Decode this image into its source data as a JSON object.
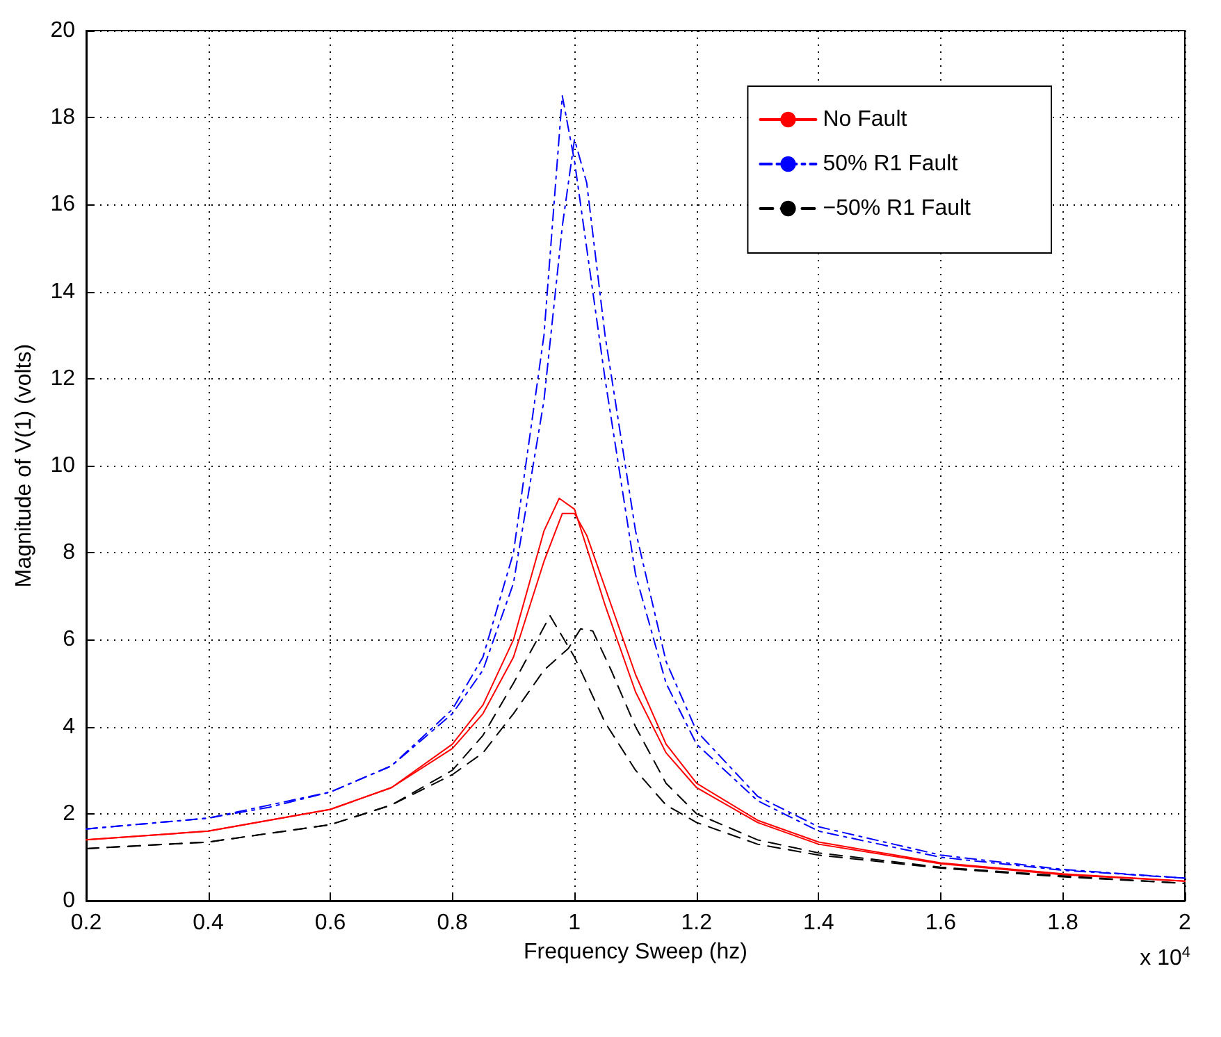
{
  "chart_data": {
    "type": "line",
    "xlabel": "Frequency Sweep (hz)",
    "ylabel": "Magnitude of V(1) (volts)",
    "annotations": [
      "x 10$^{4}$"
    ],
    "xlim": [
      0.2,
      2
    ],
    "ylim": [
      0,
      20
    ],
    "xticks": [
      0.2,
      0.4,
      0.6,
      0.8,
      1,
      1.2,
      1.4,
      1.6,
      1.8,
      2
    ],
    "yticks": [
      0,
      2,
      4,
      6,
      8,
      10,
      12,
      14,
      16,
      18,
      20
    ],
    "grid": true,
    "legend": "top right",
    "marker": "none",
    "series": [
      {
        "name": "No Fault",
        "color": "#ff0000",
        "line_style": "solid",
        "x": [
          0.2,
          0.4,
          0.6,
          0.7,
          0.8,
          0.85,
          0.9,
          0.95,
          0.975,
          1.0,
          1.05,
          1.1,
          1.15,
          1.2,
          1.3,
          1.4,
          1.6,
          1.8,
          2.0
        ],
        "values": [
          1.4,
          1.6,
          2.1,
          2.6,
          3.6,
          4.5,
          6.0,
          8.5,
          9.25,
          9.0,
          6.8,
          4.8,
          3.4,
          2.6,
          1.8,
          1.3,
          0.85,
          0.6,
          0.45
        ]
      },
      {
        "color": "#ff0000",
        "line_style": "solid",
        "x": [
          0.2,
          0.4,
          0.6,
          0.7,
          0.8,
          0.85,
          0.9,
          0.95,
          0.98,
          1.0,
          1.02,
          1.05,
          1.1,
          1.15,
          1.2,
          1.3,
          1.4,
          1.6,
          1.8,
          2.0
        ],
        "values": [
          1.4,
          1.6,
          2.1,
          2.6,
          3.5,
          4.3,
          5.6,
          7.8,
          8.9,
          8.9,
          8.4,
          7.2,
          5.2,
          3.6,
          2.7,
          1.85,
          1.35,
          0.87,
          0.62,
          0.45
        ]
      },
      {
        "name": "50% R1 Fault",
        "color": "#0000ff",
        "line_style": "dashdot",
        "x": [
          0.2,
          0.4,
          0.5,
          0.6,
          0.7,
          0.8,
          0.85,
          0.9,
          0.95,
          0.98,
          1.0,
          1.05,
          1.1,
          1.15,
          1.2,
          1.3,
          1.4,
          1.6,
          1.8,
          2.0
        ],
        "values": [
          1.65,
          1.9,
          2.15,
          2.5,
          3.1,
          4.4,
          5.6,
          8.0,
          13.0,
          18.5,
          17.0,
          12.0,
          7.5,
          5.0,
          3.6,
          2.3,
          1.6,
          1.0,
          0.7,
          0.52
        ]
      },
      {
        "color": "#0000ff",
        "line_style": "dashdot",
        "x": [
          0.2,
          0.4,
          0.6,
          0.7,
          0.8,
          0.85,
          0.9,
          0.95,
          0.98,
          1.0,
          1.02,
          1.05,
          1.1,
          1.15,
          1.2,
          1.3,
          1.4,
          1.6,
          1.8,
          2.0
        ],
        "values": [
          1.65,
          1.9,
          2.5,
          3.1,
          4.3,
          5.3,
          7.3,
          11.5,
          15.5,
          17.5,
          16.5,
          13.0,
          8.5,
          5.5,
          3.9,
          2.4,
          1.7,
          1.05,
          0.72,
          0.52
        ]
      },
      {
        "name": "−50% R1 Fault",
        "color": "#000000",
        "line_style": "dashed",
        "x": [
          0.2,
          0.4,
          0.6,
          0.7,
          0.8,
          0.85,
          0.9,
          0.96,
          1.0,
          1.05,
          1.1,
          1.15,
          1.2,
          1.3,
          1.4,
          1.6,
          1.8,
          2.0
        ],
        "values": [
          1.2,
          1.35,
          1.75,
          2.2,
          3.0,
          3.8,
          5.0,
          6.55,
          5.6,
          4.1,
          3.0,
          2.2,
          1.8,
          1.3,
          1.05,
          0.75,
          0.55,
          0.4
        ]
      },
      {
        "color": "#000000",
        "line_style": "dashed",
        "x": [
          0.2,
          0.4,
          0.6,
          0.7,
          0.8,
          0.85,
          0.9,
          0.95,
          0.99,
          1.01,
          1.03,
          1.06,
          1.1,
          1.15,
          1.2,
          1.3,
          1.4,
          1.6,
          1.8,
          2.0
        ],
        "values": [
          1.2,
          1.35,
          1.75,
          2.2,
          2.9,
          3.4,
          4.3,
          5.3,
          5.8,
          6.25,
          6.2,
          5.3,
          4.0,
          2.7,
          2.0,
          1.4,
          1.1,
          0.77,
          0.57,
          0.4
        ]
      }
    ]
  }
}
